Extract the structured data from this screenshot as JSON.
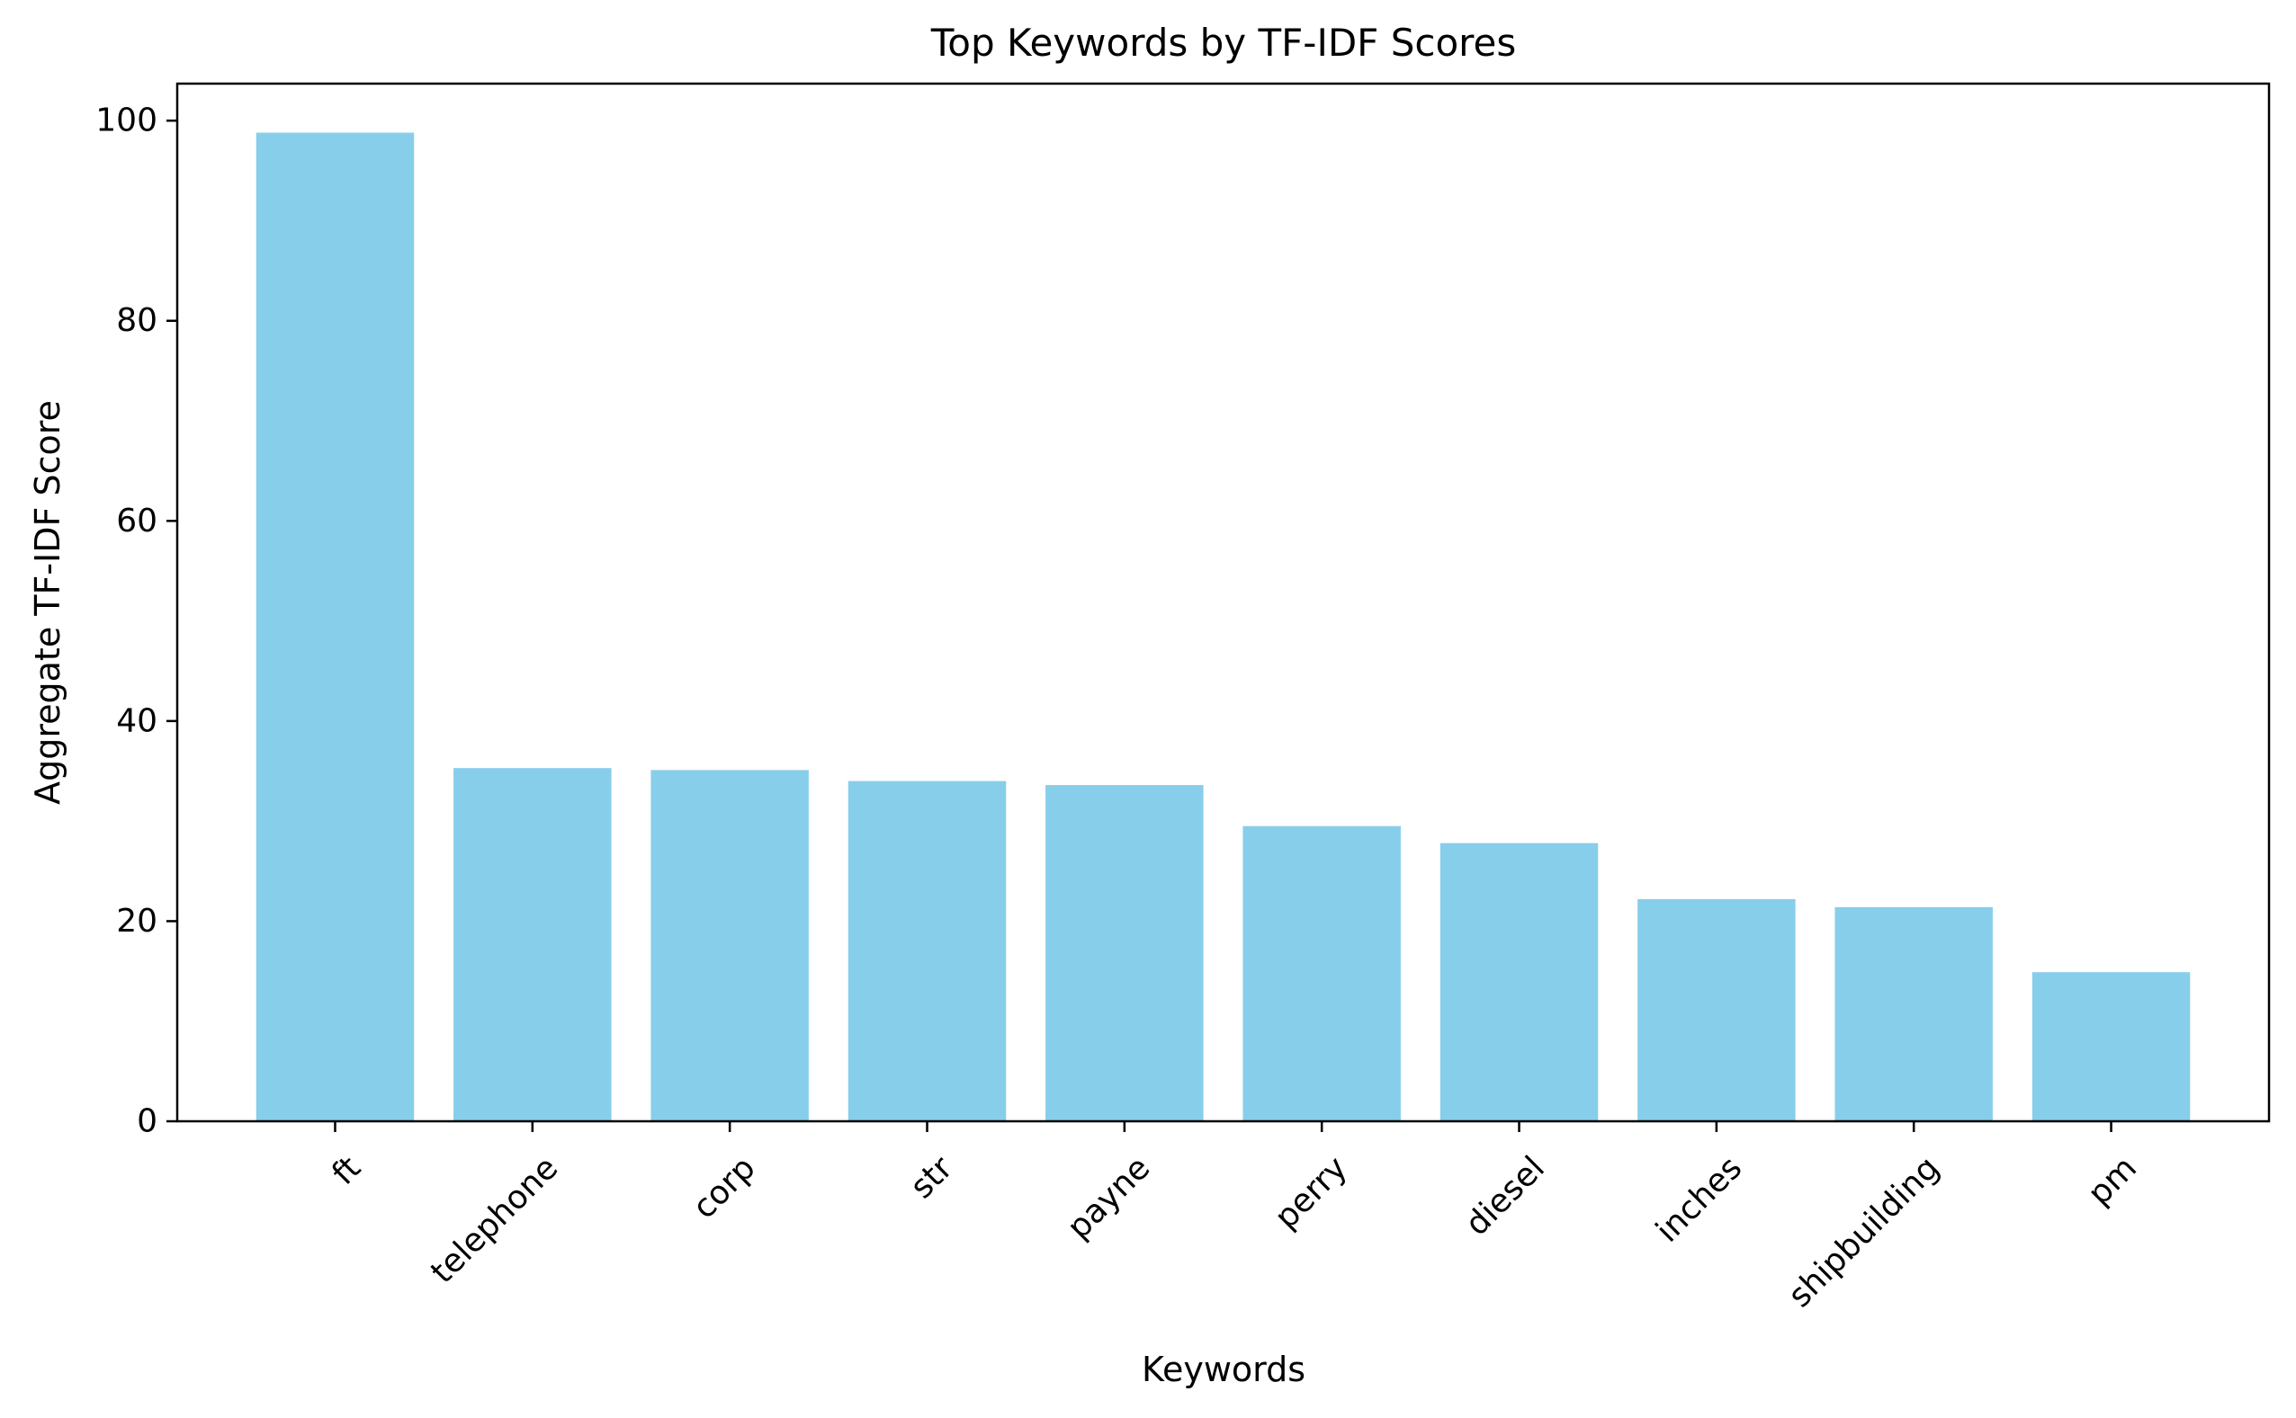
{
  "chart_data": {
    "type": "bar",
    "title": "Top Keywords by TF-IDF Scores",
    "xlabel": "Keywords",
    "ylabel": "Aggregate TF-IDF Score",
    "categories": [
      "ft",
      "telephone",
      "corp",
      "str",
      "payne",
      "perry",
      "diesel",
      "inches",
      "shipbuilding",
      "pm"
    ],
    "values": [
      98.8,
      35.3,
      35.1,
      34.0,
      33.6,
      29.5,
      27.8,
      22.2,
      21.4,
      14.9
    ],
    "ylim": [
      0,
      103.7
    ],
    "yticks": [
      0,
      20,
      40,
      60,
      80,
      100
    ],
    "bar_color": "#87CEEB",
    "grid": false,
    "legend": "none"
  }
}
